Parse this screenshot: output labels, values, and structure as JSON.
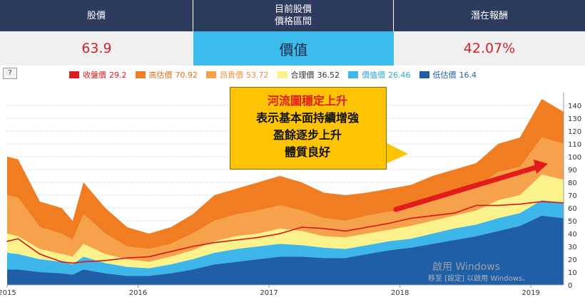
{
  "header": {
    "col1": "股價",
    "col2_line1": "目前股價",
    "col2_line2": "價格區間",
    "col3": "潛在報酬"
  },
  "values": {
    "price": "63.9",
    "zone": "價值",
    "potential_return": "42.07%"
  },
  "help_button": "?",
  "legend": [
    {
      "name": "收盤價",
      "value": "29.2",
      "color": "#e11b1b"
    },
    {
      "name": "高估價",
      "value": "70.92",
      "color": "#f07d22"
    },
    {
      "name": "昂貴價",
      "value": "53.72",
      "color": "#f6a24a"
    },
    {
      "name": "合理價",
      "value": "36.52",
      "color": "#fbf28c"
    },
    {
      "name": "價值價",
      "value": "26.46",
      "color": "#3db6ea"
    },
    {
      "name": "低估價",
      "value": "16.4",
      "color": "#1f5fa8"
    }
  ],
  "callout": {
    "line1": "河流圖穩定上升",
    "line2": "表示基本面持續增強",
    "line3": "盈餘逐步上升",
    "line4": "體質良好"
  },
  "watermark": {
    "line1": "啟用 Windows",
    "line2": "移至 [設定] 以啟用 Windows。"
  },
  "chart_data": {
    "type": "area",
    "x_ticks": [
      "2015",
      "2016",
      "2017",
      "2018",
      "2019"
    ],
    "y_ticks": [
      0,
      10,
      20,
      30,
      40,
      50,
      60,
      70,
      80,
      90,
      100,
      110,
      120,
      130,
      140
    ],
    "ylim": [
      0,
      150
    ],
    "x": [
      "2015-01",
      "2015-02",
      "2015-04",
      "2015-06",
      "2015-07",
      "2015-08",
      "2015-10",
      "2015-12",
      "2016-02",
      "2016-04",
      "2016-06",
      "2016-08",
      "2016-10",
      "2016-12",
      "2017-02",
      "2017-04",
      "2017-06",
      "2017-08",
      "2017-10",
      "2017-12",
      "2018-02",
      "2018-04",
      "2018-06",
      "2018-08",
      "2018-10",
      "2018-12",
      "2019-02",
      "2019-04"
    ],
    "series": [
      {
        "name": "收盤價",
        "values": [
          34,
          36,
          24,
          18,
          17,
          18,
          19,
          21,
          22,
          26,
          30,
          33,
          35,
          37,
          40,
          45,
          44,
          42,
          45,
          48,
          52,
          54,
          56,
          62,
          62,
          63,
          65,
          64
        ]
      },
      {
        "name": "高估價",
        "values": [
          100,
          98,
          65,
          60,
          50,
          80,
          60,
          45,
          40,
          45,
          55,
          70,
          75,
          80,
          85,
          80,
          72,
          70,
          72,
          75,
          78,
          85,
          90,
          95,
          110,
          115,
          145,
          135
        ]
      },
      {
        "name": "昂貴價",
        "values": [
          70,
          68,
          45,
          40,
          35,
          55,
          40,
          30,
          28,
          32,
          40,
          50,
          55,
          58,
          62,
          58,
          52,
          50,
          54,
          57,
          60,
          66,
          72,
          76,
          88,
          92,
          115,
          110
        ]
      },
      {
        "name": "合理價",
        "values": [
          40,
          38,
          28,
          24,
          22,
          32,
          24,
          20,
          18,
          22,
          27,
          34,
          38,
          40,
          44,
          42,
          38,
          37,
          40,
          43,
          46,
          50,
          54,
          58,
          66,
          70,
          86,
          82
        ]
      },
      {
        "name": "價值價",
        "values": [
          25,
          24,
          20,
          18,
          16,
          22,
          17,
          14,
          13,
          16,
          20,
          25,
          28,
          30,
          32,
          31,
          29,
          28,
          31,
          34,
          36,
          40,
          44,
          47,
          52,
          56,
          66,
          64
        ]
      },
      {
        "name": "低估價",
        "values": [
          12,
          12,
          10,
          9,
          8,
          12,
          9,
          7,
          7,
          9,
          12,
          16,
          18,
          20,
          22,
          22,
          21,
          21,
          24,
          27,
          29,
          32,
          35,
          38,
          42,
          46,
          54,
          52
        ]
      }
    ]
  }
}
